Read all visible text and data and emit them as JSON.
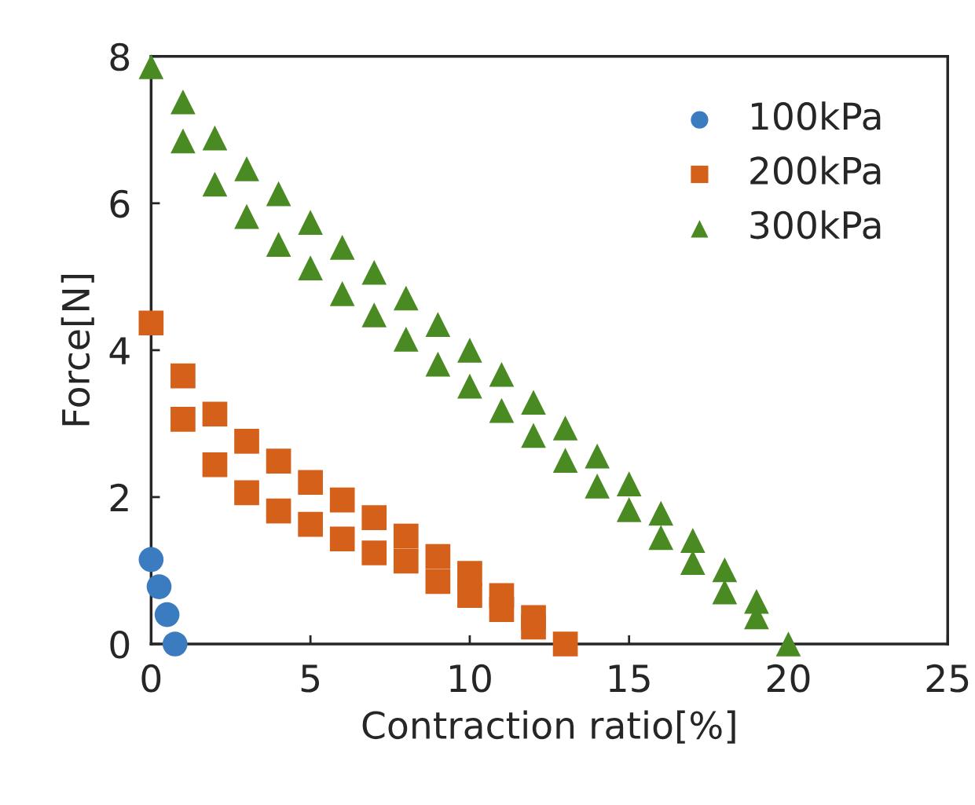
{
  "chart_data": {
    "type": "scatter",
    "xlabel": "Contraction ratio[%]",
    "ylabel": "Force[N]",
    "xlim": [
      0,
      25
    ],
    "xticks": [
      0,
      5,
      10,
      15,
      20,
      25
    ],
    "ylim": [
      0,
      8
    ],
    "yticks": [
      0,
      2,
      4,
      6,
      8
    ],
    "grid": false,
    "legend": "top right",
    "series": [
      {
        "name": "100kPa",
        "color": "#3b7cc0",
        "marker": "circle",
        "x": [
          0,
          0.25,
          0.5,
          0.75
        ],
        "values": [
          1.15,
          0.78,
          0.4,
          0.0
        ]
      },
      {
        "name": "200kPa",
        "color": "#d4601a",
        "marker": "square",
        "x": [
          0,
          1,
          1,
          2,
          2,
          3,
          3,
          4,
          4,
          5,
          5,
          6,
          6,
          7,
          7,
          8,
          8,
          9,
          9,
          10,
          10,
          11,
          11,
          12,
          12,
          13
        ],
        "values": [
          4.37,
          3.65,
          3.06,
          3.13,
          2.44,
          2.76,
          2.06,
          2.49,
          1.81,
          2.2,
          1.63,
          1.96,
          1.43,
          1.72,
          1.24,
          1.47,
          1.13,
          1.19,
          0.85,
          0.96,
          0.66,
          0.66,
          0.47,
          0.36,
          0.23,
          0.0
        ]
      },
      {
        "name": "300kPa",
        "color": "#4a8a22",
        "marker": "triangle",
        "x": [
          0,
          1,
          1,
          2,
          2,
          3,
          3,
          4,
          4,
          5,
          5,
          6,
          6,
          7,
          7,
          8,
          8,
          9,
          9,
          10,
          10,
          11,
          11,
          12,
          12,
          13,
          13,
          14,
          14,
          15,
          15,
          16,
          16,
          17,
          17,
          18,
          18,
          19,
          19,
          20
        ],
        "values": [
          7.86,
          7.38,
          6.85,
          6.89,
          6.26,
          6.47,
          5.82,
          6.13,
          5.44,
          5.74,
          5.12,
          5.4,
          4.77,
          5.06,
          4.48,
          4.71,
          4.15,
          4.35,
          3.81,
          4.0,
          3.51,
          3.67,
          3.18,
          3.29,
          2.84,
          2.94,
          2.5,
          2.56,
          2.15,
          2.18,
          1.83,
          1.78,
          1.45,
          1.41,
          1.11,
          1.01,
          0.71,
          0.58,
          0.37,
          0.0
        ]
      }
    ]
  }
}
